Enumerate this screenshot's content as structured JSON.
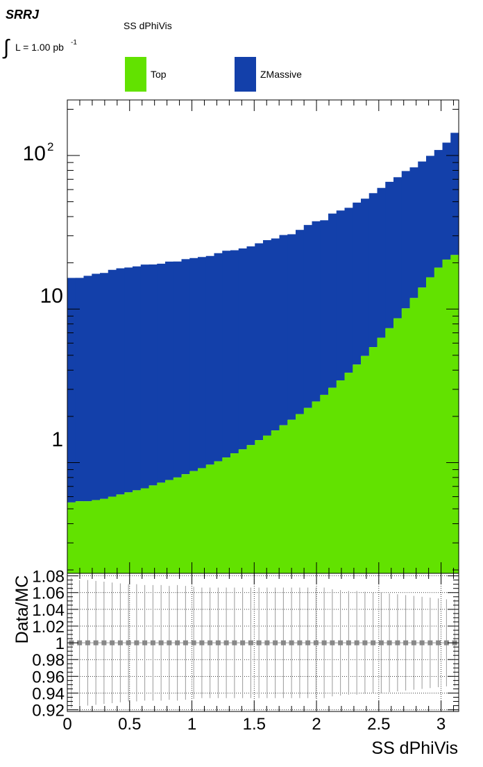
{
  "header": {
    "region": "SRRJ",
    "lumi_prefix": "∫",
    "lumi_text": "L = 1.00 pb",
    "lumi_exp": "-1"
  },
  "legend": {
    "title": "SS dPhiVis",
    "entries": [
      {
        "label": "Top",
        "color": "#62e200"
      },
      {
        "label": "ZMassive",
        "color": "#1340aa"
      }
    ]
  },
  "colors": {
    "top": "#62e200",
    "zmassive": "#1340aa",
    "ratio_marker": "#888888",
    "ratio_error": "#9a9a9a",
    "frame": "#000000",
    "grid": "#000000"
  },
  "chart_data": [
    {
      "type": "bar",
      "stacked": true,
      "log_y": true,
      "xlim": [
        0,
        3.1416
      ],
      "ylim": [
        0.19,
        230
      ],
      "xlabel": "",
      "ylabel": "",
      "x_ticks": [
        "0",
        "0.5",
        "1",
        "1.5",
        "2",
        "2.5",
        "3"
      ],
      "y_ticks": [
        "1",
        "10",
        "10^2"
      ],
      "legend_position": "top",
      "series": [
        {
          "name": "Top",
          "values": [
            0.55,
            0.56,
            0.56,
            0.57,
            0.58,
            0.6,
            0.62,
            0.64,
            0.66,
            0.68,
            0.71,
            0.74,
            0.77,
            0.8,
            0.84,
            0.88,
            0.92,
            0.97,
            1.02,
            1.08,
            1.15,
            1.22,
            1.3,
            1.4,
            1.5,
            1.62,
            1.75,
            1.9,
            2.07,
            2.27,
            2.5,
            2.76,
            3.07,
            3.43,
            3.85,
            4.35,
            4.95,
            5.65,
            6.5,
            7.5,
            8.7,
            10.1,
            11.8,
            13.8,
            16.1,
            18.6,
            21.0,
            22.5
          ]
        },
        {
          "name": "ZMassive",
          "values": [
            15.4,
            15.4,
            15.9,
            16.4,
            16.6,
            17.4,
            17.8,
            18.0,
            18.3,
            18.8,
            18.8,
            19.0,
            19.6,
            19.6,
            20.3,
            20.6,
            20.9,
            21.2,
            22.1,
            22.9,
            23.0,
            23.6,
            24.3,
            25.4,
            26.6,
            27.2,
            28.6,
            28.8,
            30.7,
            33.0,
            34.8,
            35.1,
            38.8,
            40.4,
            41.8,
            45.0,
            47.4,
            51.2,
            55.0,
            59.9,
            63.5,
            69.1,
            71.9,
            77.6,
            83.4,
            90.0,
            100.3,
            118.0
          ]
        }
      ],
      "totals": [
        15.95,
        15.96,
        16.46,
        16.97,
        17.18,
        18.0,
        18.42,
        18.64,
        18.96,
        19.48,
        19.51,
        19.74,
        20.37,
        20.4,
        21.14,
        21.48,
        21.82,
        22.17,
        23.12,
        23.98,
        24.15,
        24.82,
        25.6,
        26.8,
        28.1,
        28.82,
        30.35,
        30.7,
        32.77,
        35.27,
        37.3,
        37.86,
        41.87,
        43.83,
        45.65,
        49.35,
        52.35,
        56.85,
        61.5,
        67.4,
        72.2,
        79.2,
        83.7,
        91.4,
        99.5,
        108.6,
        121.3,
        140.5
      ]
    },
    {
      "type": "scatter",
      "xlim": [
        0,
        3.1416
      ],
      "ylim": [
        0.918,
        1.083
      ],
      "xlabel": "SS dPhiVis",
      "ylabel": "Data/MC",
      "x_ticks": [
        "0",
        "0.5",
        "1",
        "1.5",
        "2",
        "2.5",
        "3"
      ],
      "y_ticks": [
        "0.92",
        "0.94",
        "0.96",
        "0.98",
        "1",
        "1.02",
        "1.04",
        "1.06",
        "1.08"
      ],
      "grid": true,
      "series": [
        {
          "name": "",
          "values": [
            1,
            1,
            1,
            1,
            1,
            1,
            1,
            1,
            1,
            1,
            1,
            1,
            1,
            1,
            1,
            1,
            1,
            1,
            1,
            1,
            1,
            1,
            1,
            1,
            1,
            1,
            1,
            1,
            1,
            1,
            1,
            1,
            1,
            1,
            1,
            1,
            1,
            1,
            1,
            1,
            1,
            1,
            1,
            1,
            1,
            1,
            1,
            1
          ],
          "errors": [
            0.078,
            0.075,
            0.075,
            0.074,
            0.073,
            0.072,
            0.071,
            0.07,
            0.07,
            0.069,
            0.069,
            0.069,
            0.068,
            0.069,
            0.068,
            0.067,
            0.066,
            0.066,
            0.066,
            0.066,
            0.066,
            0.066,
            0.066,
            0.066,
            0.066,
            0.066,
            0.066,
            0.066,
            0.066,
            0.066,
            0.066,
            0.066,
            0.064,
            0.063,
            0.062,
            0.062,
            0.061,
            0.06,
            0.06,
            0.059,
            0.058,
            0.057,
            0.056,
            0.055,
            0.054,
            0.053,
            0.052,
            0.052
          ]
        }
      ]
    }
  ]
}
